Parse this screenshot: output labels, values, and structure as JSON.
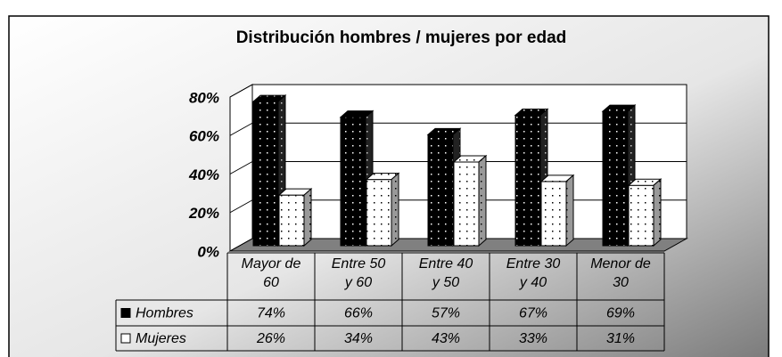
{
  "chart_data": {
    "type": "bar3d",
    "title": "Distribución hombres / mujeres por edad",
    "categories": [
      "Mayor de 60",
      "Entre 50 y 60",
      "Entre 40 y 50",
      "Entre 30 y 40",
      "Menor de 30"
    ],
    "series": [
      {
        "name": "Hombres",
        "color": "#000000",
        "values": [
          74,
          66,
          57,
          67,
          69
        ],
        "value_labels": [
          "74%",
          "66%",
          "57%",
          "67%",
          "69%"
        ]
      },
      {
        "name": "Mujeres",
        "color": "#ffffff",
        "values": [
          26,
          34,
          43,
          33,
          31
        ],
        "value_labels": [
          "26%",
          "34%",
          "43%",
          "33%",
          "31%"
        ]
      }
    ],
    "ylim": [
      0,
      80
    ],
    "yticks": [
      {
        "value": 0,
        "label": "0%"
      },
      {
        "value": 20,
        "label": "20%"
      },
      {
        "value": 40,
        "label": "40%"
      },
      {
        "value": 60,
        "label": "60%"
      },
      {
        "value": 80,
        "label": "80%"
      }
    ],
    "grid": true
  }
}
